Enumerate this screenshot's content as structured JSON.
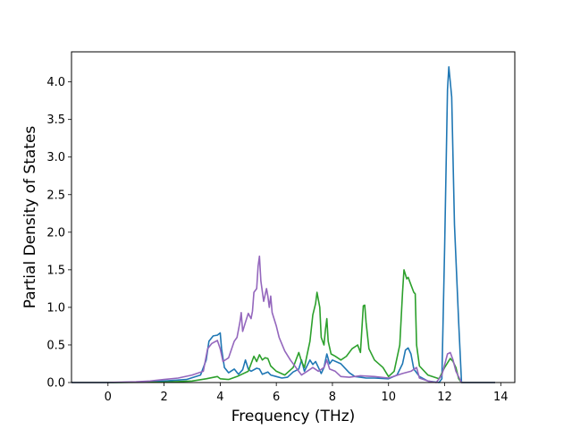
{
  "chart_data": {
    "type": "line",
    "title": "",
    "xlabel": "Frequency (THz)",
    "ylabel": "Partial Density of States",
    "xlim": [
      -1.3,
      14.5
    ],
    "ylim": [
      0.0,
      4.4
    ],
    "xticks": [
      "0",
      "2",
      "4",
      "6",
      "8",
      "10",
      "12",
      "14"
    ],
    "yticks": [
      "0.0",
      "0.5",
      "1.0",
      "1.5",
      "2.0",
      "2.5",
      "3.0",
      "3.5",
      "4.0"
    ],
    "grid": false,
    "legend": "none",
    "series": [
      {
        "color": "#1f77b4",
        "points": [
          [
            -1.3,
            0
          ],
          [
            0,
            0
          ],
          [
            1,
            0.005
          ],
          [
            2,
            0.02
          ],
          [
            2.8,
            0.04
          ],
          [
            3.3,
            0.1
          ],
          [
            3.5,
            0.3
          ],
          [
            3.6,
            0.55
          ],
          [
            3.75,
            0.62
          ],
          [
            3.9,
            0.63
          ],
          [
            4.0,
            0.66
          ],
          [
            4.05,
            0.45
          ],
          [
            4.15,
            0.2
          ],
          [
            4.3,
            0.13
          ],
          [
            4.5,
            0.18
          ],
          [
            4.65,
            0.11
          ],
          [
            4.8,
            0.17
          ],
          [
            4.9,
            0.3
          ],
          [
            5.0,
            0.18
          ],
          [
            5.1,
            0.15
          ],
          [
            5.3,
            0.19
          ],
          [
            5.4,
            0.18
          ],
          [
            5.5,
            0.11
          ],
          [
            5.7,
            0.14
          ],
          [
            5.8,
            0.1
          ],
          [
            6.0,
            0.08
          ],
          [
            6.2,
            0.06
          ],
          [
            6.4,
            0.07
          ],
          [
            6.6,
            0.14
          ],
          [
            6.8,
            0.18
          ],
          [
            6.9,
            0.3
          ],
          [
            7.0,
            0.15
          ],
          [
            7.2,
            0.3
          ],
          [
            7.3,
            0.24
          ],
          [
            7.4,
            0.28
          ],
          [
            7.5,
            0.2
          ],
          [
            7.6,
            0.12
          ],
          [
            7.7,
            0.2
          ],
          [
            7.8,
            0.38
          ],
          [
            7.9,
            0.25
          ],
          [
            8.0,
            0.3
          ],
          [
            8.3,
            0.25
          ],
          [
            8.6,
            0.13
          ],
          [
            8.8,
            0.08
          ],
          [
            9.0,
            0.07
          ],
          [
            9.2,
            0.06
          ],
          [
            9.5,
            0.06
          ],
          [
            10.0,
            0.05
          ],
          [
            10.3,
            0.1
          ],
          [
            10.5,
            0.25
          ],
          [
            10.6,
            0.43
          ],
          [
            10.7,
            0.46
          ],
          [
            10.8,
            0.38
          ],
          [
            10.9,
            0.18
          ],
          [
            11.1,
            0.08
          ],
          [
            11.4,
            0.02
          ],
          [
            11.8,
            0.0
          ],
          [
            11.9,
            0.05
          ],
          [
            12.0,
            1.8
          ],
          [
            12.1,
            3.9
          ],
          [
            12.15,
            4.2
          ],
          [
            12.25,
            3.8
          ],
          [
            12.35,
            2.1
          ],
          [
            12.5,
            0.8
          ],
          [
            12.6,
            0.0
          ],
          [
            13.8,
            0
          ]
        ]
      },
      {
        "color": "#2ca02c",
        "points": [
          [
            -1.3,
            0
          ],
          [
            0,
            0
          ],
          [
            2,
            0.005
          ],
          [
            3,
            0.02
          ],
          [
            3.5,
            0.05
          ],
          [
            3.9,
            0.08
          ],
          [
            4.0,
            0.05
          ],
          [
            4.3,
            0.04
          ],
          [
            4.6,
            0.08
          ],
          [
            5.0,
            0.15
          ],
          [
            5.2,
            0.35
          ],
          [
            5.3,
            0.28
          ],
          [
            5.4,
            0.37
          ],
          [
            5.5,
            0.3
          ],
          [
            5.6,
            0.33
          ],
          [
            5.7,
            0.32
          ],
          [
            5.8,
            0.22
          ],
          [
            6.0,
            0.15
          ],
          [
            6.3,
            0.1
          ],
          [
            6.6,
            0.2
          ],
          [
            6.8,
            0.4
          ],
          [
            6.9,
            0.28
          ],
          [
            7.0,
            0.2
          ],
          [
            7.2,
            0.55
          ],
          [
            7.3,
            0.9
          ],
          [
            7.4,
            1.05
          ],
          [
            7.45,
            1.2
          ],
          [
            7.55,
            1.0
          ],
          [
            7.6,
            0.6
          ],
          [
            7.7,
            0.5
          ],
          [
            7.75,
            0.7
          ],
          [
            7.8,
            0.85
          ],
          [
            7.85,
            0.55
          ],
          [
            7.95,
            0.38
          ],
          [
            8.1,
            0.35
          ],
          [
            8.3,
            0.3
          ],
          [
            8.5,
            0.35
          ],
          [
            8.7,
            0.45
          ],
          [
            8.9,
            0.5
          ],
          [
            9.0,
            0.4
          ],
          [
            9.1,
            1.02
          ],
          [
            9.15,
            1.03
          ],
          [
            9.2,
            0.8
          ],
          [
            9.3,
            0.45
          ],
          [
            9.5,
            0.3
          ],
          [
            9.8,
            0.2
          ],
          [
            10.0,
            0.08
          ],
          [
            10.2,
            0.15
          ],
          [
            10.4,
            0.5
          ],
          [
            10.5,
            1.2
          ],
          [
            10.55,
            1.5
          ],
          [
            10.65,
            1.38
          ],
          [
            10.7,
            1.4
          ],
          [
            10.8,
            1.3
          ],
          [
            10.9,
            1.2
          ],
          [
            10.95,
            1.18
          ],
          [
            11.0,
            0.5
          ],
          [
            11.1,
            0.22
          ],
          [
            11.4,
            0.1
          ],
          [
            11.8,
            0.05
          ],
          [
            12.0,
            0.2
          ],
          [
            12.2,
            0.32
          ],
          [
            12.3,
            0.28
          ],
          [
            12.4,
            0.2
          ],
          [
            12.5,
            0.05
          ],
          [
            12.6,
            0.0
          ],
          [
            13.8,
            0
          ]
        ]
      },
      {
        "color": "#9467bd",
        "points": [
          [
            -1.3,
            0
          ],
          [
            0,
            0
          ],
          [
            1,
            0.01
          ],
          [
            1.5,
            0.02
          ],
          [
            2,
            0.04
          ],
          [
            2.5,
            0.06
          ],
          [
            3.0,
            0.1
          ],
          [
            3.4,
            0.15
          ],
          [
            3.55,
            0.45
          ],
          [
            3.7,
            0.52
          ],
          [
            3.9,
            0.56
          ],
          [
            4.0,
            0.45
          ],
          [
            4.1,
            0.28
          ],
          [
            4.3,
            0.33
          ],
          [
            4.5,
            0.55
          ],
          [
            4.6,
            0.6
          ],
          [
            4.7,
            0.8
          ],
          [
            4.75,
            0.93
          ],
          [
            4.8,
            0.68
          ],
          [
            4.9,
            0.8
          ],
          [
            5.0,
            0.92
          ],
          [
            5.1,
            0.85
          ],
          [
            5.15,
            0.95
          ],
          [
            5.2,
            1.2
          ],
          [
            5.3,
            1.25
          ],
          [
            5.35,
            1.55
          ],
          [
            5.4,
            1.68
          ],
          [
            5.45,
            1.35
          ],
          [
            5.55,
            1.08
          ],
          [
            5.65,
            1.25
          ],
          [
            5.7,
            1.15
          ],
          [
            5.75,
            1.0
          ],
          [
            5.8,
            1.15
          ],
          [
            5.85,
            0.93
          ],
          [
            6.0,
            0.75
          ],
          [
            6.1,
            0.6
          ],
          [
            6.3,
            0.42
          ],
          [
            6.5,
            0.3
          ],
          [
            6.7,
            0.2
          ],
          [
            6.9,
            0.1
          ],
          [
            7.1,
            0.15
          ],
          [
            7.3,
            0.2
          ],
          [
            7.5,
            0.15
          ],
          [
            7.7,
            0.2
          ],
          [
            7.8,
            0.3
          ],
          [
            7.9,
            0.18
          ],
          [
            8.1,
            0.15
          ],
          [
            8.3,
            0.08
          ],
          [
            8.6,
            0.07
          ],
          [
            9.0,
            0.09
          ],
          [
            9.5,
            0.08
          ],
          [
            10.0,
            0.06
          ],
          [
            10.5,
            0.12
          ],
          [
            10.8,
            0.15
          ],
          [
            11.0,
            0.2
          ],
          [
            11.1,
            0.06
          ],
          [
            11.4,
            0.02
          ],
          [
            11.7,
            0.0
          ],
          [
            11.9,
            0.1
          ],
          [
            12.1,
            0.38
          ],
          [
            12.2,
            0.4
          ],
          [
            12.3,
            0.3
          ],
          [
            12.4,
            0.15
          ],
          [
            12.6,
            0.0
          ],
          [
            13.8,
            0
          ]
        ]
      }
    ]
  }
}
